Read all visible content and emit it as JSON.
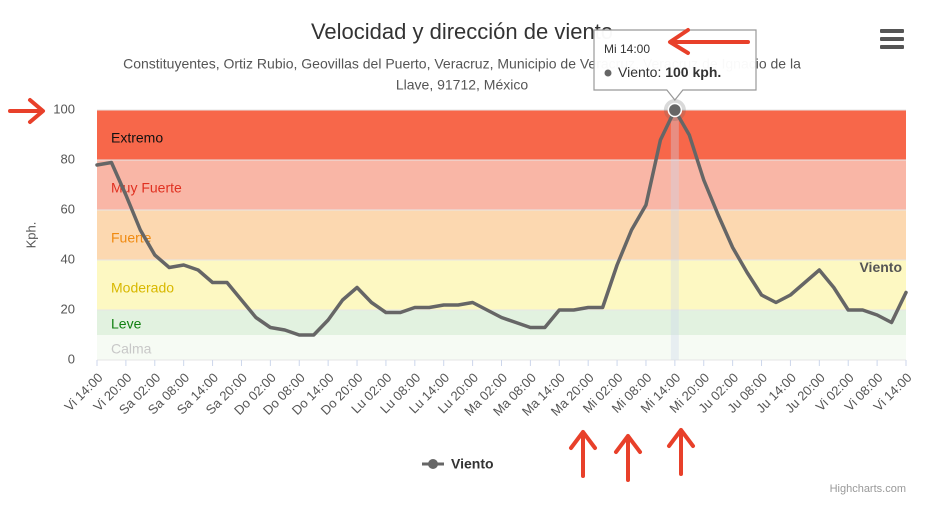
{
  "chart_data": {
    "type": "line",
    "title": "Velocidad y dirección de viento",
    "subtitle": [
      "Constituyentes, Ortiz Rubio, Geovillas del Puerto, Veracruz, Municipio de Veracruz, Veracruz de Ignacio de la",
      "Llave, 91712, México"
    ],
    "y_axis_label": "Kph.",
    "categories": [
      "Vi 14:00",
      null,
      "Vi 20:00",
      null,
      "Sa 02:00",
      null,
      "Sa 08:00",
      null,
      "Sa 14:00",
      null,
      "Sa 20:00",
      null,
      "Do 02:00",
      null,
      "Do 08:00",
      null,
      "Do 14:00",
      null,
      "Do 20:00",
      null,
      "Lu 02:00",
      null,
      "Lu 08:00",
      null,
      "Lu 14:00",
      null,
      "Lu 20:00",
      null,
      "Ma 02:00",
      null,
      "Ma 08:00",
      null,
      "Ma 14:00",
      null,
      "Ma 20:00",
      null,
      "Mi 02:00",
      null,
      "Mi 08:00",
      null,
      "Mi 14:00",
      null,
      "Mi 20:00",
      null,
      "Ju 02:00",
      null,
      "Ju 08:00",
      null,
      "Ju 14:00",
      null,
      "Ju 20:00",
      null,
      "Vi 02:00",
      null,
      "Vi 08:00",
      null,
      "Vi 14:00"
    ],
    "series": [
      {
        "name": "Viento",
        "color": "#666666",
        "values": [
          78,
          79,
          66,
          52,
          42,
          37,
          38,
          36,
          31,
          31,
          24,
          17,
          13,
          12,
          10,
          10,
          16,
          24,
          29,
          23,
          19,
          19,
          21,
          21,
          22,
          22,
          23,
          20,
          17,
          15,
          13,
          13,
          20,
          20,
          21,
          21,
          38,
          52,
          62,
          88,
          100,
          90,
          72,
          58,
          45,
          35,
          26,
          23,
          26,
          31,
          36,
          29,
          20,
          20,
          18,
          15,
          27
        ]
      }
    ],
    "ylim": [
      0,
      100
    ],
    "yticks": [
      0,
      20,
      40,
      60,
      80,
      100
    ],
    "grid": true,
    "plot_bands": [
      {
        "from": 80,
        "to": 100,
        "label": "Extremo",
        "color": "#f7674a",
        "label_color": "#111111"
      },
      {
        "from": 60,
        "to": 80,
        "label": "Muy Fuerte",
        "color": "#f9b6a6",
        "label_color": "#e03020"
      },
      {
        "from": 40,
        "to": 60,
        "label": "Fuerte",
        "color": "#fcd8b0",
        "label_color": "#f08a10"
      },
      {
        "from": 20,
        "to": 40,
        "label": "Moderado",
        "color": "#fdf8c2",
        "label_color": "#d8b800"
      },
      {
        "from": 10,
        "to": 20,
        "label": "Leve",
        "color": "#e2f2e0",
        "label_color": "#108010"
      },
      {
        "from": 0,
        "to": 10,
        "label": "Calma",
        "color": "#f6fbf4",
        "label_color": "#c8c8c8"
      }
    ],
    "tooltip": {
      "index": 40,
      "unit": "kph."
    },
    "credits": "Highcharts.com"
  }
}
